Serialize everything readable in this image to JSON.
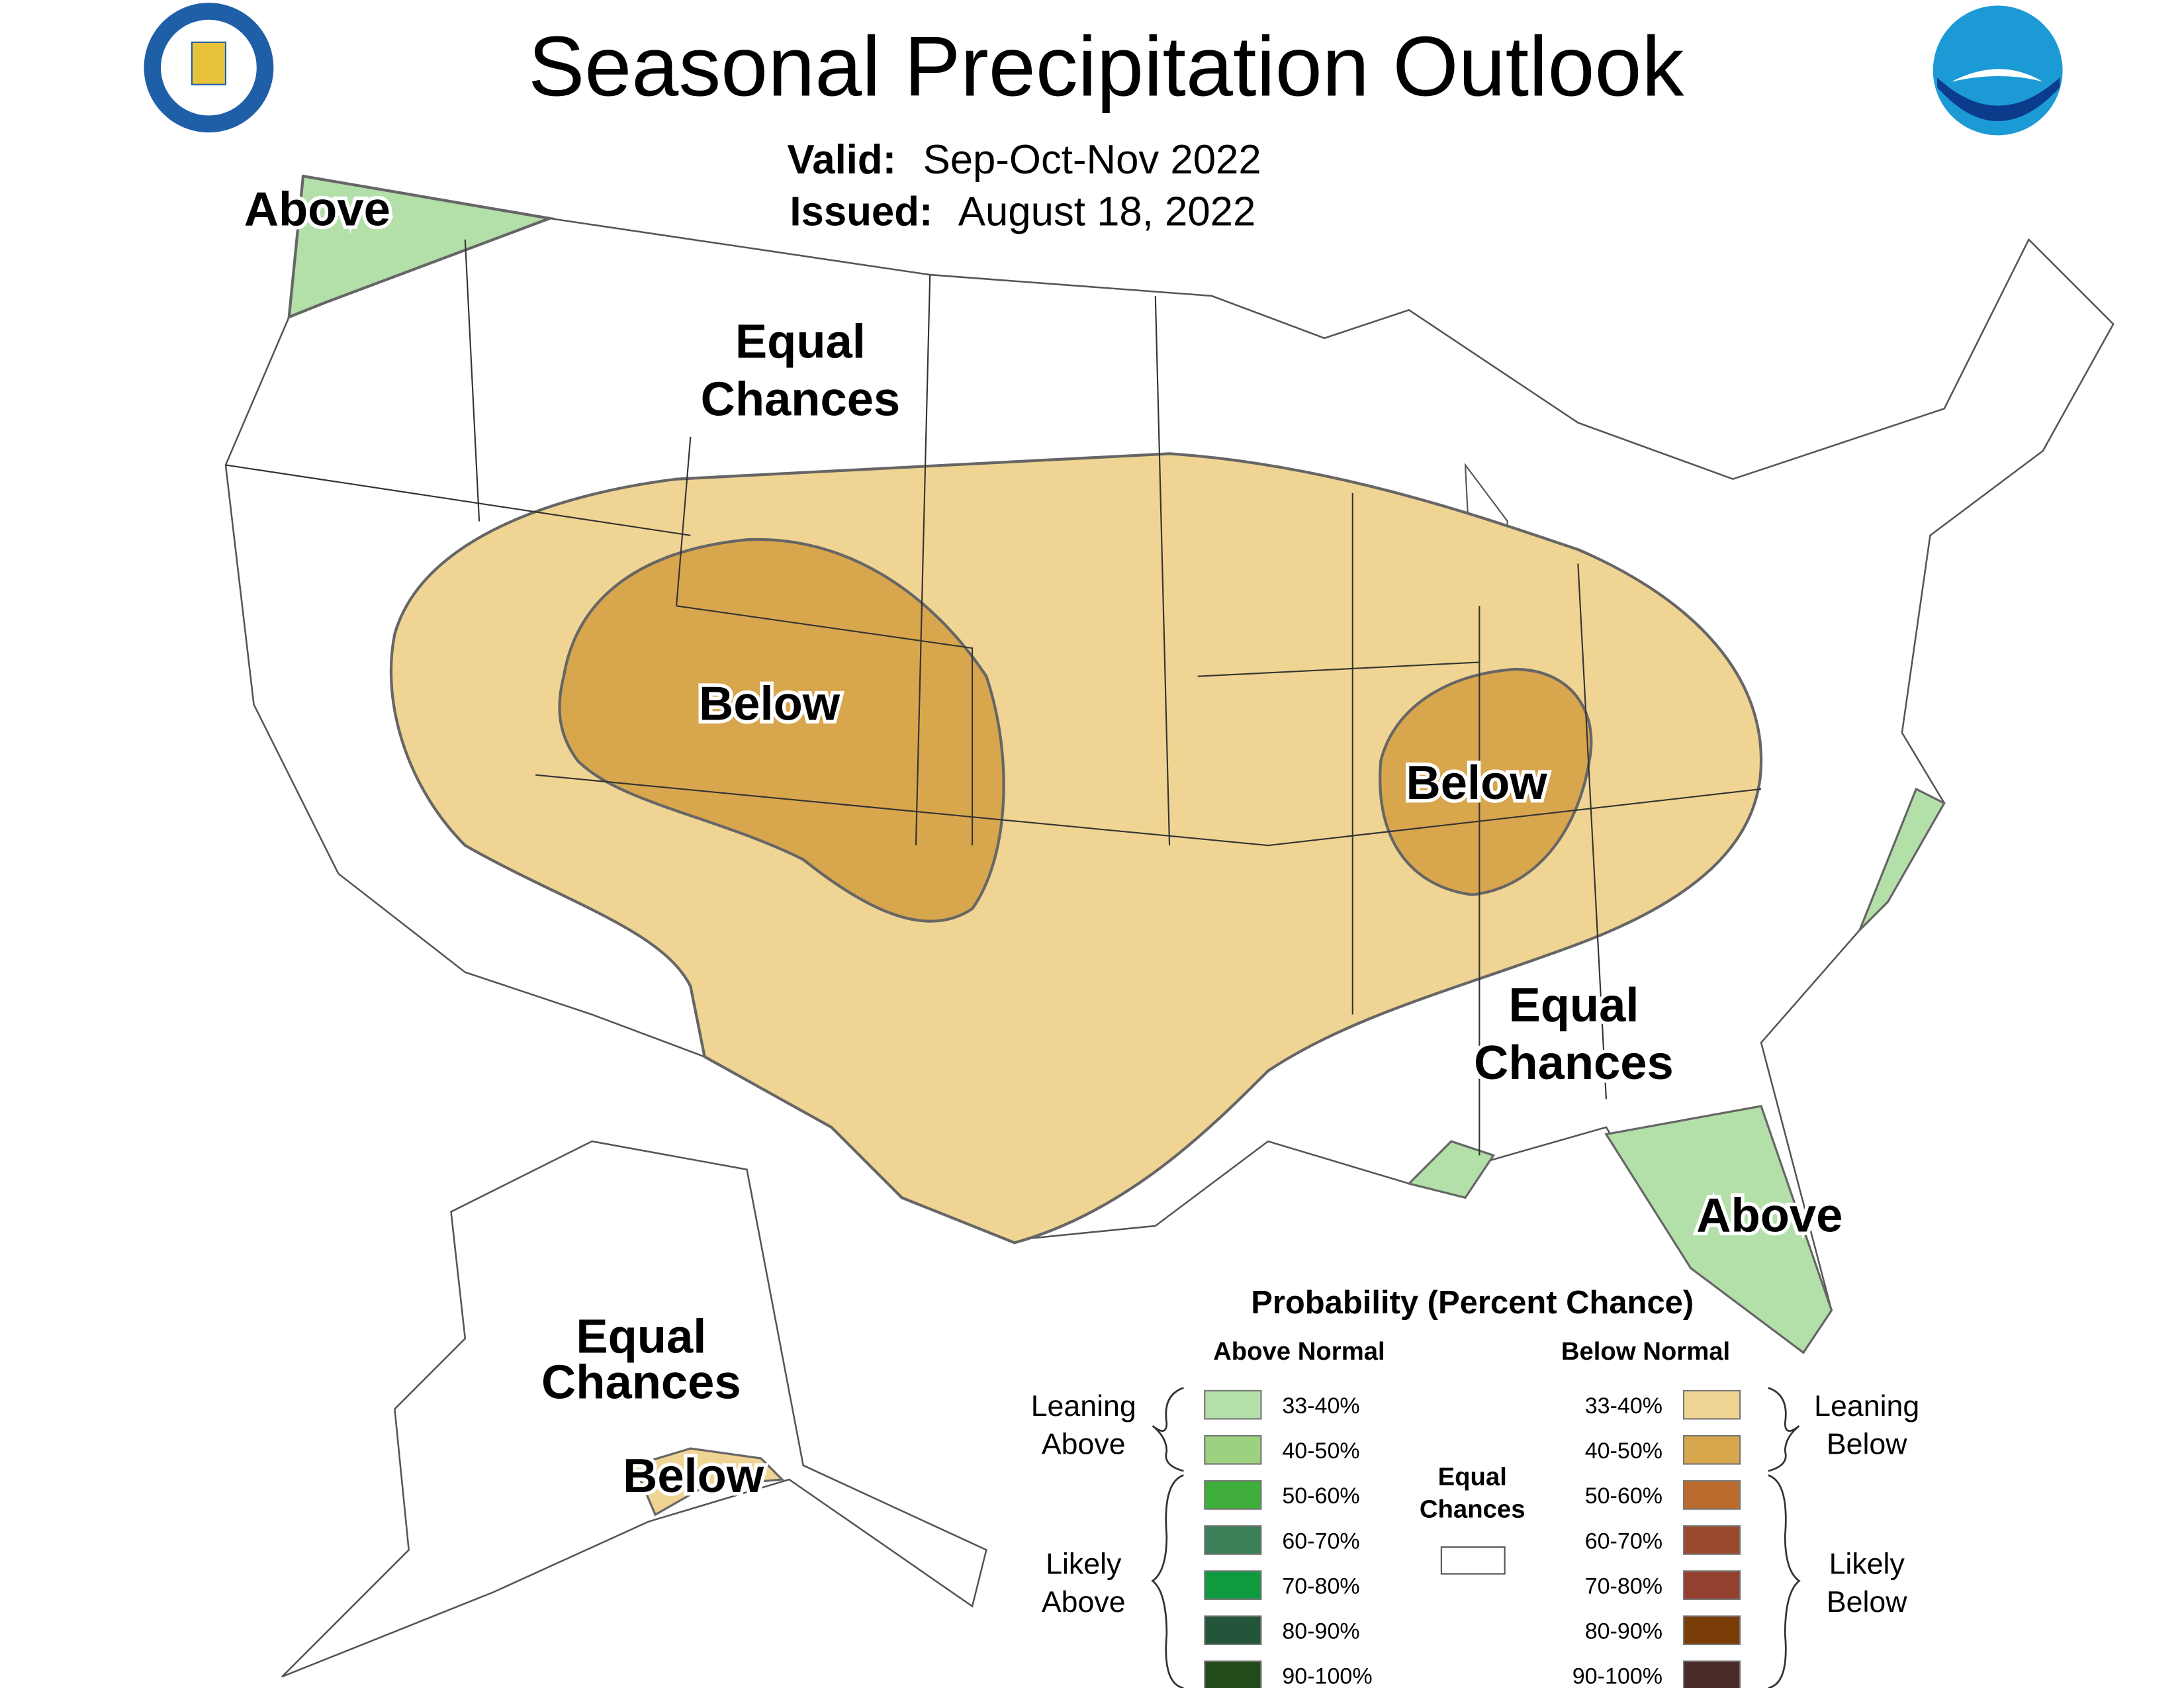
{
  "title": "Seasonal Precipitation Outlook",
  "valid": {
    "label": "Valid:",
    "value": "Sep-Oct-Nov 2022"
  },
  "issued": {
    "label": "Issued:",
    "value": "August 18, 2022"
  },
  "map_labels": [
    {
      "lines": [
        "Above"
      ]
    },
    {
      "lines": [
        "Equal",
        "Chances"
      ]
    },
    {
      "lines": [
        "Below"
      ]
    },
    {
      "lines": [
        "Below"
      ]
    },
    {
      "lines": [
        "Equal",
        "Chances"
      ]
    },
    {
      "lines": [
        "Above"
      ]
    },
    {
      "lines": [
        "Equal",
        "Chances"
      ]
    },
    {
      "lines": [
        "Below"
      ]
    }
  ],
  "legend": {
    "title": "Probability (Percent Chance)",
    "above_header": "Above Normal",
    "below_header": "Below Normal",
    "leaning_above": [
      "Leaning",
      "Above"
    ],
    "likely_above": [
      "Likely",
      "Above"
    ],
    "leaning_below": [
      "Leaning",
      "Below"
    ],
    "likely_below": [
      "Likely",
      "Below"
    ],
    "equal_chances": [
      "Equal",
      "Chances"
    ],
    "above": [
      {
        "label": "33-40%",
        "color": "#b3dfa9"
      },
      {
        "label": "40-50%",
        "color": "#9bd17f"
      },
      {
        "label": "50-60%",
        "color": "#3fae3a"
      },
      {
        "label": "60-70%",
        "color": "#3a7f58"
      },
      {
        "label": "70-80%",
        "color": "#0f9a3f"
      },
      {
        "label": "80-90%",
        "color": "#22553a"
      },
      {
        "label": "90-100%",
        "color": "#244b1a"
      }
    ],
    "below": [
      {
        "label": "33-40%",
        "color": "#f0d493"
      },
      {
        "label": "40-50%",
        "color": "#d8a64d"
      },
      {
        "label": "50-60%",
        "color": "#bb6b2e"
      },
      {
        "label": "60-70%",
        "color": "#9b4a2d"
      },
      {
        "label": "70-80%",
        "color": "#93402f"
      },
      {
        "label": "80-90%",
        "color": "#7b3d07"
      },
      {
        "label": "90-100%",
        "color": "#4b2a2a"
      }
    ]
  }
}
